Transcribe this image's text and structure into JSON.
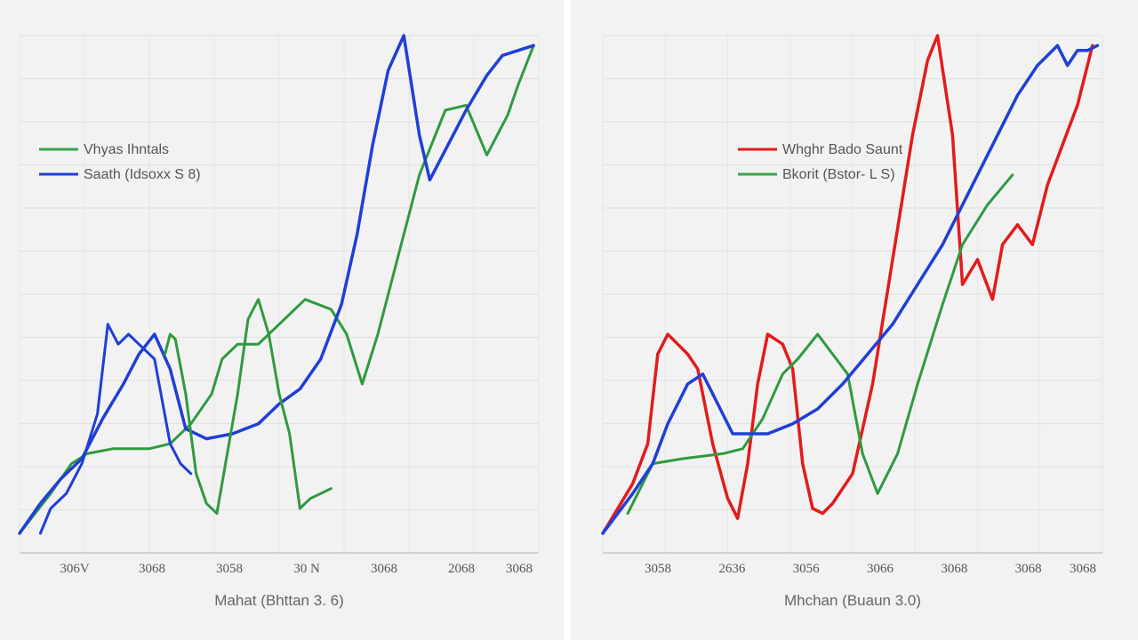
{
  "chart_data": [
    {
      "type": "line",
      "xlabel": "Mahat (Bhttan 3. 6)",
      "x_tick_labels": [
        "306V",
        "3068",
        "3058",
        "30 N",
        "3068",
        "2068",
        "3068"
      ],
      "grid": true,
      "legend_placement": "top-left",
      "legend": [
        {
          "label": "Vhyas Ihntals",
          "color": "#3aa34a"
        },
        {
          "label": "Saath (Idsoxx S 8)",
          "color": "#1f3fd6"
        }
      ],
      "series": [
        {
          "name": "Vhyas Ihntals",
          "color": "#2f9a3f",
          "width": 3,
          "points": [
            [
              0,
              0.0
            ],
            [
              0.03,
              0.04
            ],
            [
              0.06,
              0.08
            ],
            [
              0.1,
              0.14
            ],
            [
              0.13,
              0.16
            ],
            [
              0.18,
              0.17
            ],
            [
              0.25,
              0.17
            ],
            [
              0.29,
              0.18
            ],
            [
              0.33,
              0.22
            ],
            [
              0.37,
              0.28
            ],
            [
              0.39,
              0.35
            ],
            [
              0.42,
              0.38
            ],
            [
              0.46,
              0.38
            ],
            [
              0.5,
              0.42
            ],
            [
              0.55,
              0.47
            ],
            [
              0.6,
              0.45
            ],
            [
              0.63,
              0.4
            ],
            [
              0.66,
              0.3
            ],
            [
              0.69,
              0.4
            ],
            [
              0.73,
              0.56
            ],
            [
              0.77,
              0.72
            ],
            [
              0.82,
              0.85
            ],
            [
              0.86,
              0.86
            ],
            [
              0.9,
              0.76
            ],
            [
              0.94,
              0.84
            ],
            [
              0.96,
              0.9
            ],
            [
              0.99,
              0.98
            ]
          ]
        },
        {
          "name": "Saath (Idsoxx S 8)",
          "color": "#1f3fd6",
          "width": 3.5,
          "points": [
            [
              0,
              0.0
            ],
            [
              0.04,
              0.06
            ],
            [
              0.08,
              0.11
            ],
            [
              0.12,
              0.15
            ],
            [
              0.16,
              0.23
            ],
            [
              0.2,
              0.3
            ],
            [
              0.23,
              0.36
            ],
            [
              0.26,
              0.4
            ],
            [
              0.29,
              0.33
            ],
            [
              0.32,
              0.21
            ],
            [
              0.36,
              0.19
            ],
            [
              0.41,
              0.2
            ],
            [
              0.46,
              0.22
            ],
            [
              0.5,
              0.26
            ],
            [
              0.54,
              0.29
            ],
            [
              0.58,
              0.35
            ],
            [
              0.62,
              0.46
            ],
            [
              0.65,
              0.6
            ],
            [
              0.68,
              0.78
            ],
            [
              0.71,
              0.93
            ],
            [
              0.74,
              1.0
            ],
            [
              0.77,
              0.8
            ],
            [
              0.79,
              0.71
            ],
            [
              0.82,
              0.77
            ],
            [
              0.86,
              0.85
            ],
            [
              0.9,
              0.92
            ],
            [
              0.93,
              0.96
            ],
            [
              0.96,
              0.97
            ],
            [
              0.99,
              0.98
            ]
          ]
        },
        {
          "name": "",
          "color": "#2f9a3f",
          "width": 3,
          "points": [
            [
              0.28,
              0.36
            ],
            [
              0.29,
              0.4
            ],
            [
              0.3,
              0.39
            ],
            [
              0.32,
              0.28
            ],
            [
              0.34,
              0.12
            ],
            [
              0.36,
              0.06
            ],
            [
              0.38,
              0.04
            ],
            [
              0.4,
              0.16
            ],
            [
              0.42,
              0.28
            ],
            [
              0.44,
              0.43
            ],
            [
              0.46,
              0.47
            ],
            [
              0.48,
              0.4
            ],
            [
              0.5,
              0.28
            ],
            [
              0.52,
              0.2
            ],
            [
              0.54,
              0.05
            ],
            [
              0.56,
              0.07
            ],
            [
              0.6,
              0.09
            ]
          ]
        },
        {
          "name": "",
          "color": "#1f3fd6",
          "width": 3,
          "points": [
            [
              0.04,
              0.0
            ],
            [
              0.06,
              0.05
            ],
            [
              0.09,
              0.08
            ],
            [
              0.12,
              0.14
            ],
            [
              0.15,
              0.24
            ],
            [
              0.17,
              0.42
            ],
            [
              0.19,
              0.38
            ],
            [
              0.21,
              0.4
            ],
            [
              0.23,
              0.38
            ],
            [
              0.26,
              0.35
            ],
            [
              0.29,
              0.18
            ],
            [
              0.31,
              0.14
            ],
            [
              0.33,
              0.12
            ]
          ]
        }
      ]
    },
    {
      "type": "line",
      "xlabel": "Mhchan (Buaun 3.0)",
      "x_tick_labels": [
        "3058",
        "2636",
        "3056",
        "3066",
        "3068",
        "3068",
        "3068"
      ],
      "grid": true,
      "legend_placement": "top-left",
      "legend": [
        {
          "label": "Whghr Bado Saunt",
          "color": "#e31b1b"
        },
        {
          "label": "Bkorit (Bstor- L S)",
          "color": "#3aa34a"
        }
      ],
      "series": [
        {
          "name": "Whghr Bado Saunt",
          "color": "#e31b1b",
          "width": 3.5,
          "points": [
            [
              0,
              0.0
            ],
            [
              0.03,
              0.05
            ],
            [
              0.06,
              0.1
            ],
            [
              0.09,
              0.18
            ],
            [
              0.11,
              0.36
            ],
            [
              0.13,
              0.4
            ],
            [
              0.15,
              0.38
            ],
            [
              0.17,
              0.36
            ],
            [
              0.19,
              0.33
            ],
            [
              0.22,
              0.18
            ],
            [
              0.25,
              0.07
            ],
            [
              0.27,
              0.03
            ],
            [
              0.29,
              0.14
            ],
            [
              0.31,
              0.3
            ],
            [
              0.33,
              0.4
            ],
            [
              0.36,
              0.38
            ],
            [
              0.38,
              0.33
            ],
            [
              0.4,
              0.14
            ],
            [
              0.42,
              0.05
            ],
            [
              0.44,
              0.04
            ],
            [
              0.46,
              0.06
            ],
            [
              0.5,
              0.12
            ],
            [
              0.54,
              0.3
            ],
            [
              0.58,
              0.55
            ],
            [
              0.62,
              0.8
            ],
            [
              0.65,
              0.95
            ],
            [
              0.67,
              1.0
            ],
            [
              0.7,
              0.8
            ],
            [
              0.72,
              0.5
            ],
            [
              0.75,
              0.55
            ],
            [
              0.78,
              0.47
            ],
            [
              0.8,
              0.58
            ],
            [
              0.83,
              0.62
            ],
            [
              0.86,
              0.58
            ],
            [
              0.89,
              0.7
            ],
            [
              0.92,
              0.78
            ],
            [
              0.95,
              0.86
            ],
            [
              0.98,
              0.98
            ]
          ]
        },
        {
          "name": "Bkorit (Bstor- L S)",
          "color": "#2f9a3f",
          "width": 3,
          "points": [
            [
              0.05,
              0.04
            ],
            [
              0.1,
              0.14
            ],
            [
              0.16,
              0.15
            ],
            [
              0.24,
              0.16
            ],
            [
              0.28,
              0.17
            ],
            [
              0.32,
              0.23
            ],
            [
              0.36,
              0.32
            ],
            [
              0.39,
              0.35
            ],
            [
              0.43,
              0.4
            ],
            [
              0.46,
              0.36
            ],
            [
              0.49,
              0.32
            ],
            [
              0.52,
              0.16
            ],
            [
              0.55,
              0.08
            ],
            [
              0.59,
              0.16
            ],
            [
              0.63,
              0.3
            ],
            [
              0.68,
              0.46
            ],
            [
              0.72,
              0.58
            ],
            [
              0.77,
              0.66
            ],
            [
              0.82,
              0.72
            ]
          ]
        },
        {
          "name": "",
          "color": "#1f3fd6",
          "width": 3.5,
          "points": [
            [
              0,
              0.0
            ],
            [
              0.03,
              0.04
            ],
            [
              0.06,
              0.08
            ],
            [
              0.1,
              0.14
            ],
            [
              0.13,
              0.22
            ],
            [
              0.17,
              0.3
            ],
            [
              0.2,
              0.32
            ],
            [
              0.23,
              0.26
            ],
            [
              0.26,
              0.2
            ],
            [
              0.29,
              0.2
            ],
            [
              0.33,
              0.2
            ],
            [
              0.38,
              0.22
            ],
            [
              0.43,
              0.25
            ],
            [
              0.48,
              0.3
            ],
            [
              0.53,
              0.36
            ],
            [
              0.58,
              0.42
            ],
            [
              0.63,
              0.5
            ],
            [
              0.68,
              0.58
            ],
            [
              0.73,
              0.68
            ],
            [
              0.78,
              0.78
            ],
            [
              0.83,
              0.88
            ],
            [
              0.87,
              0.94
            ],
            [
              0.91,
              0.98
            ],
            [
              0.93,
              0.94
            ],
            [
              0.95,
              0.97
            ],
            [
              0.97,
              0.97
            ],
            [
              0.99,
              0.98
            ]
          ]
        }
      ]
    }
  ]
}
